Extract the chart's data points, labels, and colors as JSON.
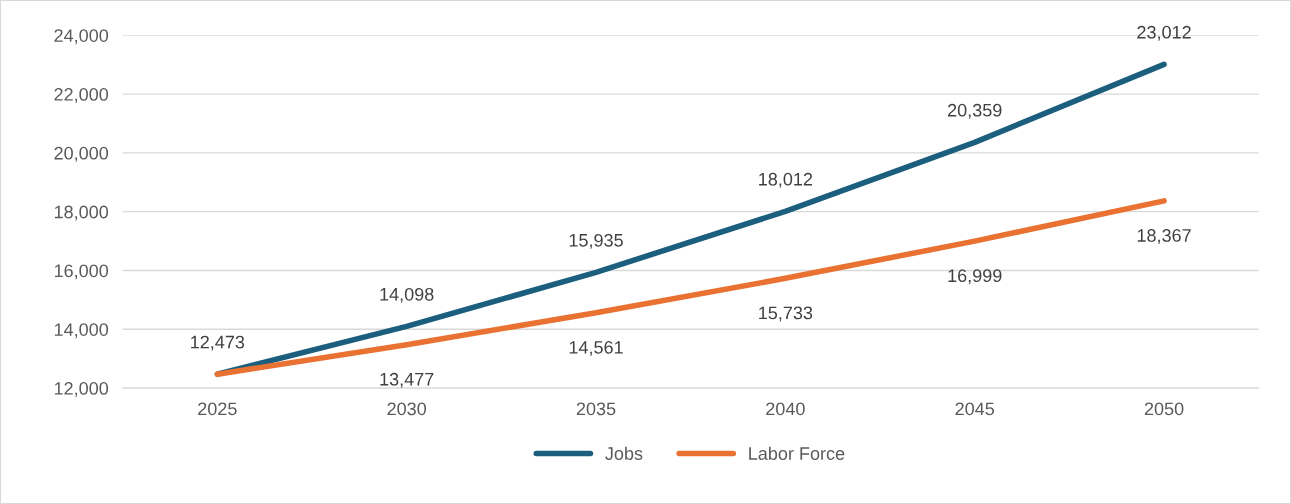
{
  "chart_data": {
    "type": "line",
    "categories": [
      "2025",
      "2030",
      "2035",
      "2040",
      "2045",
      "2050"
    ],
    "series": [
      {
        "name": "Jobs",
        "color": "#1b5e7e",
        "values": [
          12473,
          14098,
          15935,
          18012,
          20359,
          23012
        ],
        "value_labels": [
          "12,473",
          "14,098",
          "15,935",
          "18,012",
          "20,359",
          "23,012"
        ]
      },
      {
        "name": "Labor Force",
        "color": "#e97132",
        "values": [
          12473,
          13477,
          14561,
          15733,
          16999,
          18367
        ],
        "value_labels": [
          null,
          "13,477",
          "14,561",
          "15,733",
          "16,999",
          "18,367"
        ]
      }
    ],
    "ylim": [
      12000,
      24000
    ],
    "yticks": [
      {
        "value": 12000,
        "label": "12,000"
      },
      {
        "value": 14000,
        "label": "14,000"
      },
      {
        "value": 16000,
        "label": "16,000"
      },
      {
        "value": 18000,
        "label": "18,000"
      },
      {
        "value": 20000,
        "label": "20,000"
      },
      {
        "value": 22000,
        "label": "22,000"
      },
      {
        "value": 24000,
        "label": "24,000"
      }
    ],
    "grid": "y",
    "legend": "bottom",
    "marker": "none",
    "line_style": "solid"
  }
}
